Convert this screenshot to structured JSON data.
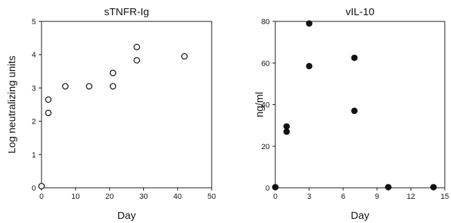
{
  "chart_data": [
    {
      "type": "scatter",
      "title": "sTNFR-Ig",
      "xlabel": "Day",
      "ylabel": "Log neutralizing units",
      "xlim": [
        0,
        50
      ],
      "ylim": [
        0,
        5
      ],
      "xticks": [
        0,
        10,
        20,
        30,
        40,
        50
      ],
      "yticks": [
        0,
        1,
        2,
        3,
        4,
        5
      ],
      "marker": "open-circle",
      "points": [
        {
          "x": 0,
          "y": 0.05
        },
        {
          "x": 2,
          "y": 2.25
        },
        {
          "x": 2,
          "y": 2.65
        },
        {
          "x": 7,
          "y": 3.05
        },
        {
          "x": 14,
          "y": 3.05
        },
        {
          "x": 21,
          "y": 3.05
        },
        {
          "x": 21,
          "y": 3.45
        },
        {
          "x": 28,
          "y": 3.83
        },
        {
          "x": 28,
          "y": 4.23
        },
        {
          "x": 42,
          "y": 3.95
        }
      ]
    },
    {
      "type": "scatter",
      "title": "vIL-10",
      "xlabel": "Day",
      "ylabel": "ng/ml",
      "xlim": [
        0,
        15
      ],
      "ylim": [
        0,
        80
      ],
      "xticks": [
        0,
        3,
        6,
        9,
        12,
        15
      ],
      "yticks": [
        0,
        20,
        40,
        60,
        80
      ],
      "marker": "filled-circle",
      "points": [
        {
          "x": 0,
          "y": 0.3
        },
        {
          "x": 1,
          "y": 27
        },
        {
          "x": 1,
          "y": 29.5
        },
        {
          "x": 3,
          "y": 58.5
        },
        {
          "x": 3,
          "y": 79
        },
        {
          "x": 7,
          "y": 37
        },
        {
          "x": 7,
          "y": 62.5
        },
        {
          "x": 10,
          "y": 0.3
        },
        {
          "x": 14,
          "y": 0.3
        }
      ]
    }
  ]
}
